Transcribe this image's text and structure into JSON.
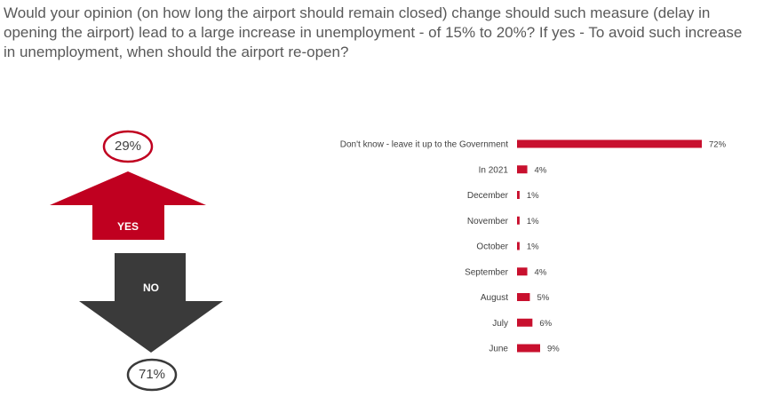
{
  "question": "Would your opinion (on how long the airport should remain closed) change should such measure (delay in opening the airport) lead to a large increase in unemployment - of 15% to 20%? If yes - To avoid such increase in unemployment, when should the airport re-open?",
  "yes_no": {
    "yes_label": "YES",
    "yes_pct": "29%",
    "no_label": "NO",
    "no_pct": "71%",
    "yes_color": "#c00020",
    "no_color": "#3a3a3a"
  },
  "chart_data": {
    "type": "bar",
    "orientation": "horizontal",
    "categories": [
      "Don't know - leave it up to the Government",
      "In 2021",
      "December",
      "November",
      "October",
      "September",
      "August",
      "July",
      "June"
    ],
    "values": [
      72,
      4,
      1,
      1,
      1,
      4,
      5,
      6,
      9
    ],
    "value_labels": [
      "72%",
      "4%",
      "1%",
      "1%",
      "1%",
      "4%",
      "5%",
      "6%",
      "9%"
    ],
    "bar_color": "#c8102e",
    "xlim": [
      0,
      100
    ]
  }
}
